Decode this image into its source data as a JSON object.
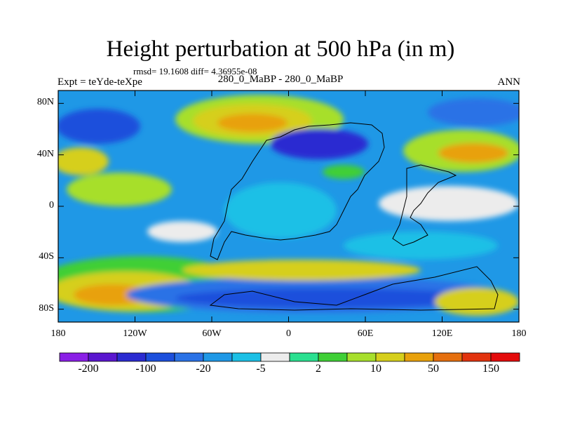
{
  "title": "Height perturbation at 500 hPa (in m)",
  "stats": "rmsd= 19.1608 diff= 4.36955e-08",
  "experiment": "Expt = teYde-teXpe",
  "subtitle": "280_0_MaBP - 280_0_MaBP",
  "season": "ANN",
  "chart_data": {
    "type": "heatmap",
    "title": "Height perturbation at 500 hPa (in m)",
    "xlabel": "",
    "ylabel": "",
    "x_ticks": [
      "180",
      "120W",
      "60W",
      "0",
      "60E",
      "120E",
      "180"
    ],
    "x_values": [
      -180,
      -120,
      -60,
      0,
      60,
      120,
      180
    ],
    "y_ticks": [
      "80N",
      "40N",
      "0",
      "40S",
      "80S"
    ],
    "y_values": [
      80,
      40,
      0,
      -40,
      -80
    ],
    "xlim": [
      -180,
      180
    ],
    "ylim": [
      -90,
      90
    ],
    "colorbar": {
      "labels": [
        "-200",
        "-100",
        "-20",
        "-5",
        "2",
        "10",
        "50",
        "150"
      ],
      "colors": [
        "#8a1fe6",
        "#5a16cf",
        "#2b2bd1",
        "#1c4fdc",
        "#2a72e6",
        "#1f98e6",
        "#1cc0e6",
        "#ececec",
        "#2ae090",
        "#3fcf36",
        "#a7df2c",
        "#d6cf1c",
        "#e8a10c",
        "#e56f0e",
        "#e2330e",
        "#e40b0b"
      ]
    },
    "field_description": "Contoured global field of 500 hPa height difference; positive anomalies (yellow-orange) near 70N 50W-90W, 30N 120E-160E, 60S 150W-120W; negative anomalies (blue) over the Southern Ocean 70S and central Eurasia."
  }
}
